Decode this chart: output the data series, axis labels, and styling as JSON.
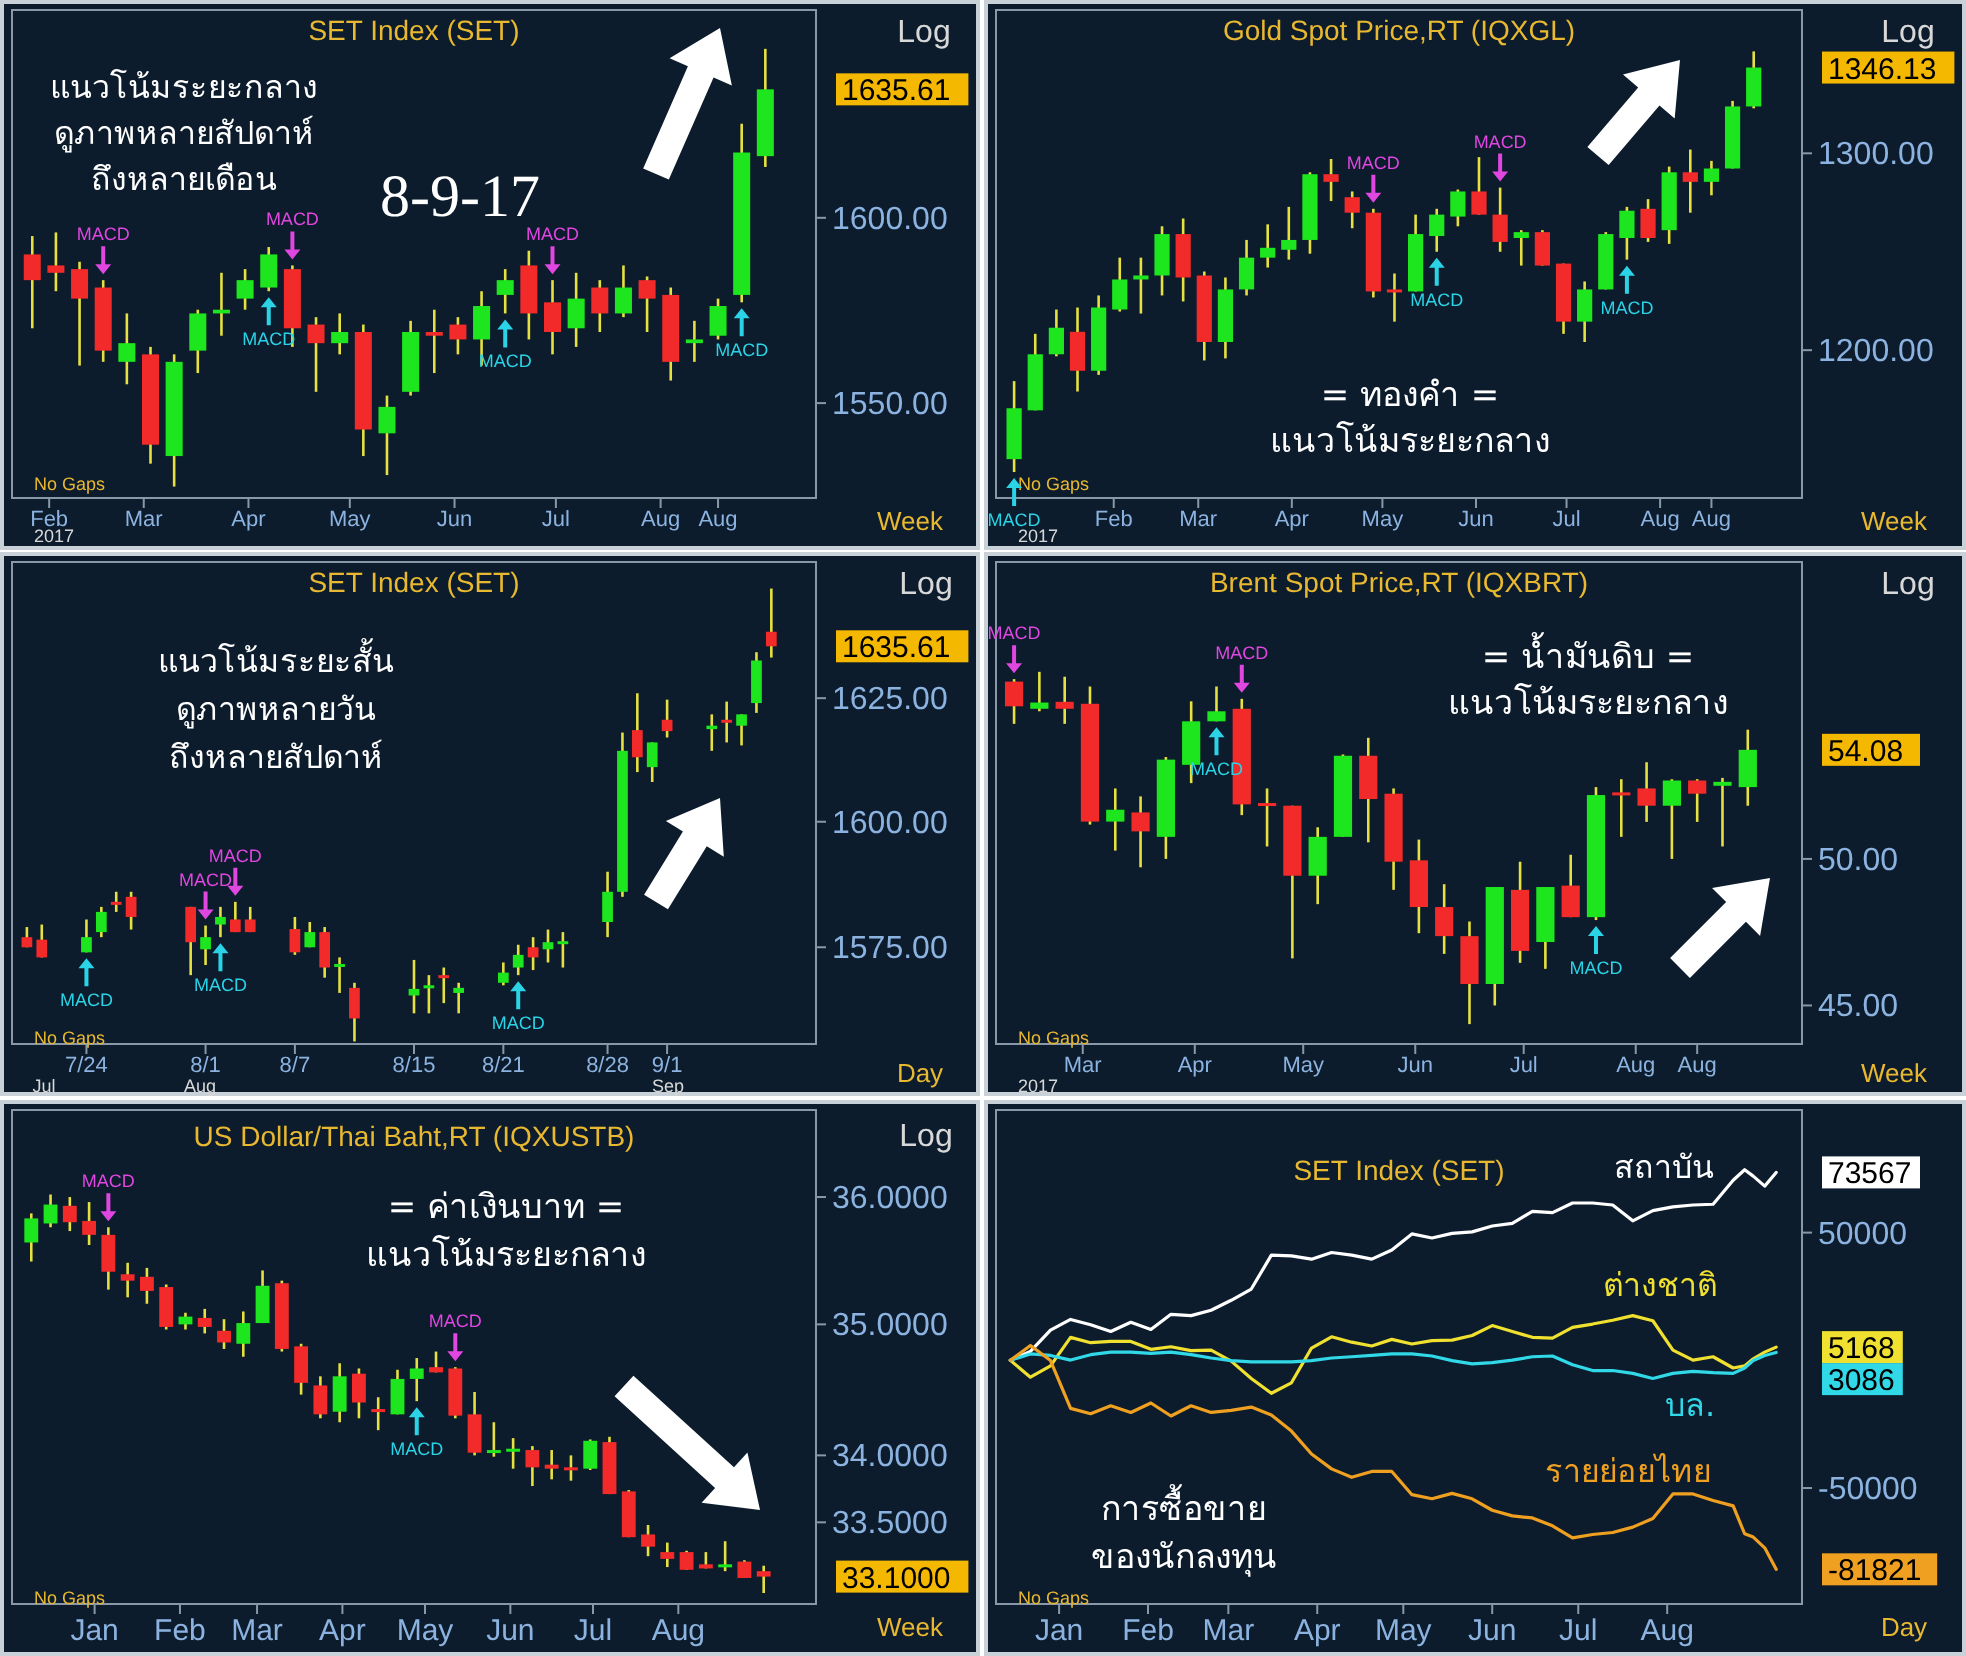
{
  "chart_data": [
    {
      "type": "candlestick",
      "title": "SET Index (SET)",
      "log": true,
      "x": [
        "2017-01-27",
        "2017-02-03",
        "2017-02-10",
        "2017-02-17",
        "2017-02-24",
        "2017-03-03",
        "2017-03-10",
        "2017-03-17",
        "2017-03-24",
        "2017-03-31",
        "2017-04-07",
        "2017-04-14",
        "2017-04-21",
        "2017-04-28",
        "2017-05-05",
        "2017-05-12",
        "2017-05-19",
        "2017-05-26",
        "2017-06-02",
        "2017-06-09",
        "2017-06-16",
        "2017-06-23",
        "2017-06-30",
        "2017-07-07",
        "2017-07-14",
        "2017-07-21",
        "2017-07-28",
        "2017-08-04",
        "2017-08-11",
        "2017-08-18",
        "2017-08-25",
        "2017-09-01"
      ],
      "ohlc": [
        [
          1590,
          1595,
          1570,
          1583
        ],
        [
          1587,
          1596,
          1580,
          1585
        ],
        [
          1586,
          1588,
          1560,
          1578
        ],
        [
          1581,
          1583,
          1561,
          1564
        ],
        [
          1561,
          1574,
          1555,
          1566
        ],
        [
          1563,
          1565,
          1534,
          1539
        ],
        [
          1536,
          1563,
          1528,
          1561
        ],
        [
          1564,
          1575,
          1558,
          1574
        ],
        [
          1574,
          1585,
          1568,
          1575
        ],
        [
          1578,
          1586,
          1575,
          1583
        ],
        [
          1581,
          1592,
          1580,
          1590
        ],
        [
          1586,
          1587,
          1565,
          1570
        ],
        [
          1571,
          1573,
          1553,
          1566
        ],
        [
          1566,
          1574,
          1563,
          1569
        ],
        [
          1569,
          1571,
          1536,
          1543
        ],
        [
          1542,
          1552,
          1531,
          1549
        ],
        [
          1553,
          1572,
          1552,
          1569
        ],
        [
          1569,
          1575,
          1558,
          1568
        ],
        [
          1571,
          1573,
          1563,
          1567
        ],
        [
          1567,
          1580,
          1560,
          1576
        ],
        [
          1579,
          1586,
          1574,
          1583
        ],
        [
          1587,
          1591,
          1567,
          1574
        ],
        [
          1577,
          1583,
          1563,
          1569
        ],
        [
          1570,
          1585,
          1565,
          1578
        ],
        [
          1581,
          1583,
          1569,
          1574
        ],
        [
          1574,
          1587,
          1573,
          1581
        ],
        [
          1583,
          1584,
          1569,
          1578
        ],
        [
          1579,
          1581,
          1556,
          1561
        ],
        [
          1566,
          1572,
          1561,
          1567
        ],
        [
          1568,
          1578,
          1567,
          1576
        ],
        [
          1579,
          1626,
          1577,
          1618
        ],
        [
          1617,
          1647,
          1614,
          1635.61
        ]
      ],
      "xlim": [
        "2017-01-21",
        "2017-09-16"
      ],
      "xticks": [
        {
          "value": "2017-02-01",
          "label": "Feb"
        },
        {
          "value": "2017-03-01",
          "label": "Mar"
        },
        {
          "value": "2017-04-01",
          "label": "Apr"
        },
        {
          "value": "2017-05-01",
          "label": "May"
        },
        {
          "value": "2017-06-01",
          "label": "Jun"
        },
        {
          "value": "2017-07-01",
          "label": "Jul"
        },
        {
          "value": "2017-08-01",
          "label": "Aug"
        },
        {
          "value": "2017-08-18",
          "label": "Aug"
        }
      ],
      "ylim": [
        1525,
        1658
      ],
      "yticks": [
        {
          "value": 1550,
          "label": "1550.00"
        },
        {
          "value": 1600,
          "label": "1600.00"
        }
      ],
      "annotations": [
        "แนวโน้มระยะกลาง\nดูภาพหลายสัปดาห์\nถึงหลายเดือน",
        "8-9-17",
        "No Gaps",
        "Log",
        "Week",
        "2017",
        {
          "text": "MACD",
          "x": "2017-02-17",
          "y": 1583
        },
        {
          "text": "MACD",
          "x": "2017-04-14",
          "y": 1587
        },
        {
          "text": "MACD",
          "x": "2017-06-30",
          "y": 1583
        },
        {
          "text": "MACD",
          "x": "2017-04-07",
          "y": 1580
        },
        {
          "text": "MACD",
          "x": "2017-06-16",
          "y": 1574
        },
        {
          "text": "MACD",
          "x": "2017-08-25",
          "y": 1577
        },
        {
          "text": "1635.61",
          "x": "2017-09-01",
          "y": 1635.61
        }
      ]
    },
    {
      "type": "candlestick",
      "title": "Gold Spot Price,RT (IQXGL)",
      "log": true,
      "x": [
        "2016-12-30",
        "2017-01-06",
        "2017-01-13",
        "2017-01-20",
        "2017-01-27",
        "2017-02-03",
        "2017-02-10",
        "2017-02-17",
        "2017-02-24",
        "2017-03-03",
        "2017-03-10",
        "2017-03-17",
        "2017-03-24",
        "2017-03-31",
        "2017-04-07",
        "2017-04-14",
        "2017-04-21",
        "2017-04-28",
        "2017-05-05",
        "2017-05-12",
        "2017-05-19",
        "2017-05-26",
        "2017-06-02",
        "2017-06-09",
        "2017-06-16",
        "2017-06-23",
        "2017-06-30",
        "2017-07-07",
        "2017-07-14",
        "2017-07-21",
        "2017-07-28",
        "2017-08-04",
        "2017-08-11",
        "2017-08-18",
        "2017-08-25",
        "2017-09-01"
      ],
      "ohlc": [
        [
          1148,
          1185,
          1142,
          1172
        ],
        [
          1171,
          1208,
          1171,
          1198
        ],
        [
          1198,
          1220,
          1197,
          1211
        ],
        [
          1209,
          1221,
          1180,
          1190
        ],
        [
          1190,
          1227,
          1188,
          1221
        ],
        [
          1220,
          1246,
          1219,
          1235
        ],
        [
          1235,
          1246,
          1218,
          1237
        ],
        [
          1237,
          1262,
          1227,
          1258
        ],
        [
          1258,
          1266,
          1224,
          1236
        ],
        [
          1237,
          1239,
          1195,
          1204
        ],
        [
          1204,
          1236,
          1196,
          1230
        ],
        [
          1230,
          1255,
          1227,
          1246
        ],
        [
          1246,
          1263,
          1241,
          1251
        ],
        [
          1250,
          1272,
          1245,
          1255
        ],
        [
          1255,
          1290,
          1248,
          1289
        ],
        [
          1289,
          1297,
          1275,
          1285
        ],
        [
          1277,
          1280,
          1261,
          1269
        ],
        [
          1269,
          1271,
          1226,
          1229
        ],
        [
          1230,
          1238,
          1214,
          1229
        ],
        [
          1229,
          1268,
          1229,
          1258
        ],
        [
          1257,
          1271,
          1249,
          1268
        ],
        [
          1267,
          1281,
          1262,
          1280
        ],
        [
          1280,
          1298,
          1268,
          1268
        ],
        [
          1268,
          1282,
          1249,
          1254
        ],
        [
          1256,
          1260,
          1242,
          1259
        ],
        [
          1259,
          1260,
          1242,
          1242
        ],
        [
          1243,
          1243,
          1208,
          1214
        ],
        [
          1214,
          1234,
          1204,
          1230
        ],
        [
          1230,
          1259,
          1230,
          1258
        ],
        [
          1256,
          1272,
          1245,
          1270
        ],
        [
          1271,
          1276,
          1254,
          1256
        ],
        [
          1260,
          1293,
          1253,
          1290
        ],
        [
          1290,
          1302,
          1269,
          1285
        ],
        [
          1285,
          1296,
          1278,
          1292
        ],
        [
          1292,
          1328,
          1292,
          1325
        ],
        [
          1325,
          1355,
          1324,
          1346.13
        ]
      ],
      "xlim": [
        "2016-12-24",
        "2017-09-17"
      ],
      "xticks": [
        {
          "value": "2017-02-01",
          "label": "Feb"
        },
        {
          "value": "2017-03-01",
          "label": "Mar"
        },
        {
          "value": "2017-04-01",
          "label": "Apr"
        },
        {
          "value": "2017-05-01",
          "label": "May"
        },
        {
          "value": "2017-06-01",
          "label": "Jun"
        },
        {
          "value": "2017-07-01",
          "label": "Jul"
        },
        {
          "value": "2017-08-01",
          "label": "Aug"
        },
        {
          "value": "2017-08-18",
          "label": "Aug"
        }
      ],
      "ylim": [
        1130,
        1378
      ],
      "yticks": [
        {
          "value": 1200,
          "label": "1200.00"
        },
        {
          "value": 1300,
          "label": "1300.00"
        }
      ],
      "annotations": [
        "= ทองคำ =\nแนวโน้มระยะกลาง",
        "No Gaps",
        "Log",
        "Week",
        "2017",
        {
          "text": "MACD",
          "x": "2016-12-30",
          "y": 1142
        },
        {
          "text": "MACD",
          "x": "2017-04-28",
          "y": 1271
        },
        {
          "text": "MACD",
          "x": "2017-05-19",
          "y": 1249
        },
        {
          "text": "MACD",
          "x": "2017-06-09",
          "y": 1282
        },
        {
          "text": "MACD",
          "x": "2017-07-21",
          "y": 1245
        },
        {
          "text": "1346.13",
          "x": "2017-09-01",
          "y": 1346.13
        }
      ]
    },
    {
      "type": "candlestick",
      "title": "SET Index (SET)",
      "log": true,
      "x": [
        "2017-07-20",
        "2017-07-21",
        "2017-07-24",
        "2017-07-25",
        "2017-07-26",
        "2017-07-27",
        "2017-07-31",
        "2017-08-01",
        "2017-08-02",
        "2017-08-03",
        "2017-08-04",
        "2017-08-07",
        "2017-08-08",
        "2017-08-09",
        "2017-08-10",
        "2017-08-11",
        "2017-08-15",
        "2017-08-16",
        "2017-08-17",
        "2017-08-18",
        "2017-08-21",
        "2017-08-22",
        "2017-08-23",
        "2017-08-24",
        "2017-08-25",
        "2017-08-28",
        "2017-08-29",
        "2017-08-30",
        "2017-08-31",
        "2017-09-01",
        "2017-09-04",
        "2017-09-05",
        "2017-09-06",
        "2017-09-07",
        "2017-09-08"
      ],
      "ohlc": [
        [
          1577,
          1579,
          1575,
          1575
        ],
        [
          1576.5,
          1579.5,
          1573,
          1573
        ],
        [
          1574,
          1580.5,
          1574,
          1577
        ],
        [
          1578,
          1583,
          1577,
          1582
        ],
        [
          1584,
          1586,
          1582,
          1583.6
        ],
        [
          1585,
          1586,
          1578.5,
          1581
        ],
        [
          1583,
          1583,
          1569.5,
          1576
        ],
        [
          1574.6,
          1579.3,
          1571.5,
          1577
        ],
        [
          1579.5,
          1583,
          1577,
          1581
        ],
        [
          1580.5,
          1584,
          1578,
          1578
        ],
        [
          1580.5,
          1583,
          1578,
          1578
        ],
        [
          1578.6,
          1581,
          1573.5,
          1574
        ],
        [
          1575,
          1580,
          1575,
          1578
        ],
        [
          1578,
          1579,
          1569,
          1571
        ],
        [
          1571.5,
          1573,
          1566,
          1571.7
        ],
        [
          1567,
          1568,
          1556.5,
          1561
        ],
        [
          1565.5,
          1572.5,
          1562,
          1566.8
        ],
        [
          1567,
          1569.5,
          1562,
          1567.5
        ],
        [
          1569.5,
          1571,
          1564,
          1569
        ],
        [
          1566,
          1568,
          1562,
          1567
        ],
        [
          1568,
          1572,
          1567.5,
          1570
        ],
        [
          1571,
          1575.5,
          1569.5,
          1573.5
        ],
        [
          1575,
          1577,
          1570.5,
          1573
        ],
        [
          1574.6,
          1578.5,
          1572,
          1576
        ],
        [
          1576,
          1578,
          1571,
          1576.2
        ],
        [
          1580,
          1590,
          1577,
          1586
        ],
        [
          1586,
          1618,
          1585,
          1614.3
        ],
        [
          1618.5,
          1626,
          1610,
          1613
        ],
        [
          1611,
          1616,
          1608,
          1616
        ],
        [
          1620.6,
          1624.7,
          1617,
          1618.3
        ],
        [
          1618.7,
          1621.7,
          1614.3,
          1619.4
        ],
        [
          1620.6,
          1624.3,
          1616,
          1620.3
        ],
        [
          1619.4,
          1621.7,
          1615.4,
          1621.7
        ],
        [
          1624,
          1634.4,
          1622,
          1632.7
        ],
        [
          1638.6,
          1647.5,
          1633.3,
          1635.61
        ]
      ],
      "xlim": [
        "2017-07-19",
        "2017-09-11"
      ],
      "xticks": [
        {
          "value": "2017-07-24",
          "label": "7/24"
        },
        {
          "value": "2017-08-01",
          "label": "8/1"
        },
        {
          "value": "2017-08-07",
          "label": "8/7"
        },
        {
          "value": "2017-08-15",
          "label": "8/15"
        },
        {
          "value": "2017-08-21",
          "label": "8/21"
        },
        {
          "value": "2017-08-28",
          "label": "8/28"
        },
        {
          "value": "2017-09-01",
          "label": "9/1"
        }
      ],
      "ylim": [
        1556,
        1653
      ],
      "yticks": [
        {
          "value": 1575,
          "label": "1575.00"
        },
        {
          "value": 1600,
          "label": "1600.00"
        },
        {
          "value": 1625,
          "label": "1625.00"
        }
      ],
      "annotations": [
        "แนวโน้มระยะสั้น\nดูภาพหลายวัน\nถึงหลายสัปดาห์",
        "No Gaps",
        "Log",
        "Day",
        "Jul",
        "Aug",
        "Sep",
        {
          "text": "MACD",
          "x": "2017-07-24",
          "y": 1574
        },
        {
          "text": "MACD",
          "x": "2017-08-01",
          "y": 1579.3
        },
        {
          "text": "MACD",
          "x": "2017-08-02",
          "y": 1577
        },
        {
          "text": "MACD",
          "x": "2017-08-03",
          "y": 1584
        },
        {
          "text": "MACD",
          "x": "2017-08-22",
          "y": 1569.5
        },
        {
          "text": "1635.61",
          "x": "2017-09-08",
          "y": 1635.61
        }
      ]
    },
    {
      "type": "candlestick",
      "title": "Brent Spot Price,RT (IQXBRT)",
      "log": true,
      "x": [
        "2017-02-10",
        "2017-02-17",
        "2017-02-24",
        "2017-03-03",
        "2017-03-10",
        "2017-03-17",
        "2017-03-24",
        "2017-03-31",
        "2017-04-07",
        "2017-04-14",
        "2017-04-21",
        "2017-04-28",
        "2017-05-05",
        "2017-05-12",
        "2017-05-19",
        "2017-05-26",
        "2017-06-02",
        "2017-06-09",
        "2017-06-16",
        "2017-06-23",
        "2017-06-30",
        "2017-07-07",
        "2017-07-14",
        "2017-07-21",
        "2017-07-28",
        "2017-08-04",
        "2017-08-11",
        "2017-08-18",
        "2017-08-25",
        "2017-09-01"
      ],
      "ohlc": [
        [
          56.8,
          56.9,
          55.1,
          55.8
        ],
        [
          55.7,
          57.2,
          55.6,
          55.95
        ],
        [
          55.98,
          57.0,
          55.1,
          55.7
        ],
        [
          55.9,
          56.6,
          51.25,
          51.36
        ],
        [
          51.36,
          52.6,
          50.3,
          51.8
        ],
        [
          51.7,
          52.3,
          49.7,
          51.0
        ],
        [
          50.8,
          53.8,
          50.0,
          53.7
        ],
        [
          53.5,
          56.0,
          52.8,
          55.2
        ],
        [
          55.2,
          56.6,
          55.2,
          55.6
        ],
        [
          55.7,
          56.1,
          51.6,
          52.0
        ],
        [
          52.05,
          52.6,
          50.45,
          51.95
        ],
        [
          51.95,
          51.95,
          46.55,
          49.4
        ],
        [
          49.4,
          51.15,
          48.4,
          50.8
        ],
        [
          50.8,
          53.9,
          50.8,
          53.85
        ],
        [
          53.85,
          54.55,
          50.6,
          52.2
        ],
        [
          52.4,
          52.6,
          48.9,
          49.9
        ],
        [
          49.95,
          50.7,
          47.4,
          48.3
        ],
        [
          48.3,
          49.1,
          46.7,
          47.3
        ],
        [
          47.3,
          47.8,
          44.4,
          45.7
        ],
        [
          45.7,
          49.0,
          45.0,
          49.0
        ],
        [
          48.9,
          49.9,
          46.4,
          46.8
        ],
        [
          47.1,
          49.0,
          46.2,
          49.0
        ],
        [
          49.05,
          50.15,
          47.95,
          47.95
        ],
        [
          47.95,
          52.65,
          47.85,
          52.35
        ],
        [
          52.45,
          52.95,
          50.8,
          52.35
        ],
        [
          52.6,
          53.6,
          51.35,
          51.95
        ],
        [
          51.95,
          52.95,
          50.0,
          52.9
        ],
        [
          52.9,
          52.95,
          51.35,
          52.4
        ],
        [
          52.7,
          53.0,
          50.45,
          52.85
        ],
        [
          52.65,
          54.87,
          51.95,
          54.08
        ]
      ],
      "xlim": [
        "2017-02-05",
        "2017-09-16"
      ],
      "xticks": [
        {
          "value": "2017-03-01",
          "label": "Mar"
        },
        {
          "value": "2017-04-01",
          "label": "Apr"
        },
        {
          "value": "2017-05-01",
          "label": "May"
        },
        {
          "value": "2017-06-01",
          "label": "Jun"
        },
        {
          "value": "2017-07-01",
          "label": "Jul"
        },
        {
          "value": "2017-08-01",
          "label": "Aug"
        },
        {
          "value": "2017-08-18",
          "label": "Aug"
        }
      ],
      "ylim": [
        43.77,
        61.9
      ],
      "yticks": [
        {
          "value": 45,
          "label": "45.00"
        },
        {
          "value": 50,
          "label": "50.00"
        }
      ],
      "annotations": [
        "= น้ำมันดิบ =\nแนวโน้มระยะกลาง",
        "No Gaps",
        "Log",
        "Week",
        "2017",
        {
          "text": "MACD",
          "x": "2017-02-10",
          "y": 56.9
        },
        {
          "text": "MACD",
          "x": "2017-04-07",
          "y": 55.2
        },
        {
          "text": "MACD",
          "x": "2017-04-14",
          "y": 56.1
        },
        {
          "text": "MACD",
          "x": "2017-07-21",
          "y": 47.85
        },
        {
          "text": "54.08",
          "x": "2017-09-01",
          "y": 54.08
        }
      ]
    },
    {
      "type": "candlestick",
      "title": "US Dollar/Thai Baht,RT (IQXUSTB)",
      "log": true,
      "x": [
        "2016-12-09",
        "2016-12-16",
        "2016-12-23",
        "2016-12-30",
        "2017-01-06",
        "2017-01-13",
        "2017-01-20",
        "2017-01-27",
        "2017-02-03",
        "2017-02-10",
        "2017-02-17",
        "2017-02-24",
        "2017-03-03",
        "2017-03-10",
        "2017-03-17",
        "2017-03-24",
        "2017-03-31",
        "2017-04-07",
        "2017-04-14",
        "2017-04-21",
        "2017-04-28",
        "2017-05-05",
        "2017-05-12",
        "2017-05-19",
        "2017-05-26",
        "2017-06-02",
        "2017-06-09",
        "2017-06-16",
        "2017-06-23",
        "2017-06-30",
        "2017-07-07",
        "2017-07-14",
        "2017-07-21",
        "2017-07-28",
        "2017-08-04",
        "2017-08-11",
        "2017-08-18",
        "2017-08-25",
        "2017-09-01"
      ],
      "ohlc": [
        [
          35.64,
          35.87,
          35.49,
          35.83
        ],
        [
          35.79,
          36.02,
          35.76,
          35.94
        ],
        [
          35.93,
          36.0,
          35.73,
          35.8
        ],
        [
          35.81,
          35.96,
          35.62,
          35.7
        ],
        [
          35.7,
          35.76,
          35.27,
          35.41
        ],
        [
          35.39,
          35.48,
          35.21,
          35.34
        ],
        [
          35.37,
          35.44,
          35.16,
          35.26
        ],
        [
          35.29,
          35.31,
          34.96,
          34.98
        ],
        [
          35.0,
          35.09,
          34.96,
          35.06
        ],
        [
          35.05,
          35.12,
          34.93,
          34.98
        ],
        [
          34.95,
          35.04,
          34.81,
          34.86
        ],
        [
          34.85,
          35.1,
          34.75,
          35.01
        ],
        [
          35.01,
          35.42,
          35.01,
          35.3
        ],
        [
          35.32,
          35.34,
          34.79,
          34.81
        ],
        [
          34.83,
          34.85,
          34.46,
          34.55
        ],
        [
          34.53,
          34.6,
          34.28,
          34.31
        ],
        [
          34.33,
          34.7,
          34.25,
          34.6
        ],
        [
          34.62,
          34.66,
          34.28,
          34.4
        ],
        [
          34.35,
          34.44,
          34.19,
          34.33
        ],
        [
          34.31,
          34.65,
          34.31,
          34.58
        ],
        [
          34.58,
          34.74,
          34.41,
          34.66
        ],
        [
          34.67,
          34.79,
          34.63,
          34.63
        ],
        [
          34.66,
          34.67,
          34.28,
          34.3
        ],
        [
          34.31,
          34.48,
          34.0,
          34.02
        ],
        [
          34.03,
          34.25,
          33.99,
          34.04
        ],
        [
          34.04,
          34.13,
          33.9,
          34.05
        ],
        [
          34.04,
          34.07,
          33.77,
          33.91
        ],
        [
          33.93,
          34.04,
          33.82,
          33.9
        ],
        [
          33.91,
          34.0,
          33.81,
          33.9
        ],
        [
          33.9,
          34.12,
          33.89,
          34.11
        ],
        [
          34.1,
          34.14,
          33.71,
          33.71
        ],
        [
          33.73,
          33.74,
          33.39,
          33.39
        ],
        [
          33.41,
          33.48,
          33.25,
          33.32
        ],
        [
          33.28,
          33.35,
          33.17,
          33.23
        ],
        [
          33.28,
          33.29,
          33.15,
          33.15
        ],
        [
          33.19,
          33.28,
          33.16,
          33.16
        ],
        [
          33.17,
          33.36,
          33.14,
          33.19
        ],
        [
          33.21,
          33.22,
          33.09,
          33.09
        ],
        [
          33.14,
          33.18,
          32.98,
          33.1
        ]
      ],
      "xlim": [
        "2016-12-02",
        "2017-09-20"
      ],
      "xticks": [
        {
          "value": "2017-01-01",
          "label": "Jan"
        },
        {
          "value": "2017-02-01",
          "label": "Feb"
        },
        {
          "value": "2017-03-01",
          "label": "Mar"
        },
        {
          "value": "2017-04-01",
          "label": "Apr"
        },
        {
          "value": "2017-05-01",
          "label": "May"
        },
        {
          "value": "2017-06-01",
          "label": "Jun"
        },
        {
          "value": "2017-07-01",
          "label": "Jul"
        },
        {
          "value": "2017-08-01",
          "label": "Aug"
        }
      ],
      "ylim": [
        32.9,
        36.7
      ],
      "yticks": [
        {
          "value": 33.5,
          "label": "33.5000"
        },
        {
          "value": 34,
          "label": "34.0000"
        },
        {
          "value": 35,
          "label": "35.0000"
        },
        {
          "value": 36,
          "label": "36.0000"
        }
      ],
      "annotations": [
        "= ค่าเงินบาท =\nแนวโน้มระยะกลาง",
        "No Gaps",
        "Log",
        "Week",
        {
          "text": "MACD",
          "x": "2017-01-06",
          "y": 35.76
        },
        {
          "text": "MACD",
          "x": "2017-04-28",
          "y": 34.41
        },
        {
          "text": "MACD",
          "x": "2017-05-12",
          "y": 34.67
        },
        {
          "text": "33.1000",
          "x": "2017-09-01",
          "y": 33.1
        }
      ]
    },
    {
      "type": "line",
      "title": "SET Index (SET)",
      "x": [
        "2016-12-15",
        "2016-12-22",
        "2016-12-29",
        "2017-01-05",
        "2017-01-12",
        "2017-01-19",
        "2017-01-26",
        "2017-02-02",
        "2017-02-09",
        "2017-02-16",
        "2017-02-23",
        "2017-03-02",
        "2017-03-09",
        "2017-03-16",
        "2017-03-23",
        "2017-03-30",
        "2017-04-06",
        "2017-04-13",
        "2017-04-20",
        "2017-04-27",
        "2017-05-04",
        "2017-05-11",
        "2017-05-18",
        "2017-05-25",
        "2017-06-01",
        "2017-06-08",
        "2017-06-15",
        "2017-06-22",
        "2017-06-29",
        "2017-07-06",
        "2017-07-13",
        "2017-07-20",
        "2017-07-27",
        "2017-08-03",
        "2017-08-10",
        "2017-08-17",
        "2017-08-24",
        "2017-08-28",
        "2017-08-31",
        "2017-09-04",
        "2017-09-08"
      ],
      "series": [
        {
          "name": "สถาบัน",
          "color": "#ffffff",
          "values": [
            0,
            3500,
            11800,
            16000,
            13900,
            11300,
            14900,
            12100,
            18000,
            17500,
            19600,
            23500,
            27900,
            41200,
            40900,
            39600,
            42200,
            41200,
            39600,
            43200,
            49500,
            47900,
            49700,
            50300,
            52600,
            53600,
            58300,
            57800,
            61600,
            61600,
            60800,
            54600,
            58600,
            60100,
            60800,
            61100,
            70500,
            74600,
            72100,
            68200,
            73567
          ]
        },
        {
          "name": "ต่างชาติ",
          "color": "#f0e030",
          "values": [
            0,
            -6600,
            -2200,
            9000,
            6900,
            7400,
            7400,
            4300,
            5300,
            3800,
            4000,
            -300,
            -7100,
            -12900,
            -8800,
            4800,
            9200,
            7100,
            5600,
            8200,
            6400,
            7700,
            7900,
            9700,
            13600,
            11300,
            9000,
            8700,
            12900,
            14200,
            15700,
            17500,
            15500,
            4000,
            100,
            1400,
            -3000,
            -2200,
            600,
            3200,
            5168
          ]
        },
        {
          "name": "บล.",
          "color": "#30d8e8",
          "values": [
            0,
            2500,
            1900,
            100,
            2200,
            3200,
            3200,
            2700,
            3200,
            2200,
            900,
            -100,
            -600,
            -600,
            -600,
            -100,
            900,
            1400,
            1900,
            2500,
            2500,
            1700,
            -100,
            -1400,
            -900,
            100,
            1400,
            1700,
            -1700,
            -4000,
            -4000,
            -5100,
            -7100,
            -5100,
            -4300,
            -4800,
            -5100,
            -3000,
            -100,
            1900,
            3086
          ]
        },
        {
          "name": "รายย่อยไทย",
          "color": "#f0a020",
          "values": [
            0,
            5800,
            -100,
            -18800,
            -20900,
            -17800,
            -20400,
            -16700,
            -21800,
            -17800,
            -20400,
            -19600,
            -18300,
            -21400,
            -27700,
            -36700,
            -42500,
            -45800,
            -43500,
            -43500,
            -52600,
            -54200,
            -52100,
            -54200,
            -58700,
            -60900,
            -61700,
            -64800,
            -69500,
            -68200,
            -67400,
            -65300,
            -61900,
            -52300,
            -52300,
            -54900,
            -57000,
            -67900,
            -69200,
            -73400,
            -81821
          ]
        }
      ],
      "xlim": [
        "2016-12-10",
        "2017-09-17"
      ],
      "xticks": [
        {
          "value": "2017-01-01",
          "label": "Jan"
        },
        {
          "value": "2017-02-01",
          "label": "Feb"
        },
        {
          "value": "2017-03-01",
          "label": "Mar"
        },
        {
          "value": "2017-04-01",
          "label": "Apr"
        },
        {
          "value": "2017-05-01",
          "label": "May"
        },
        {
          "value": "2017-06-01",
          "label": "Jun"
        },
        {
          "value": "2017-07-01",
          "label": "Jul"
        },
        {
          "value": "2017-08-01",
          "label": "Aug"
        }
      ],
      "ylim": [
        -95400,
        98000
      ],
      "yticks": [
        50000,
        -50000
      ],
      "annotations": [
        "การซื้อขาย\nของนักลงทุน",
        "No Gaps",
        "Day",
        {
          "text": "73567",
          "x": "2017-09-08",
          "y": 73567
        },
        {
          "text": "5168",
          "x": "2017-09-08",
          "y": 5168
        },
        {
          "text": "3086",
          "x": "2017-09-08",
          "y": 3086
        },
        {
          "text": "-81821",
          "x": "2017-09-08",
          "y": -81821
        }
      ]
    }
  ]
}
